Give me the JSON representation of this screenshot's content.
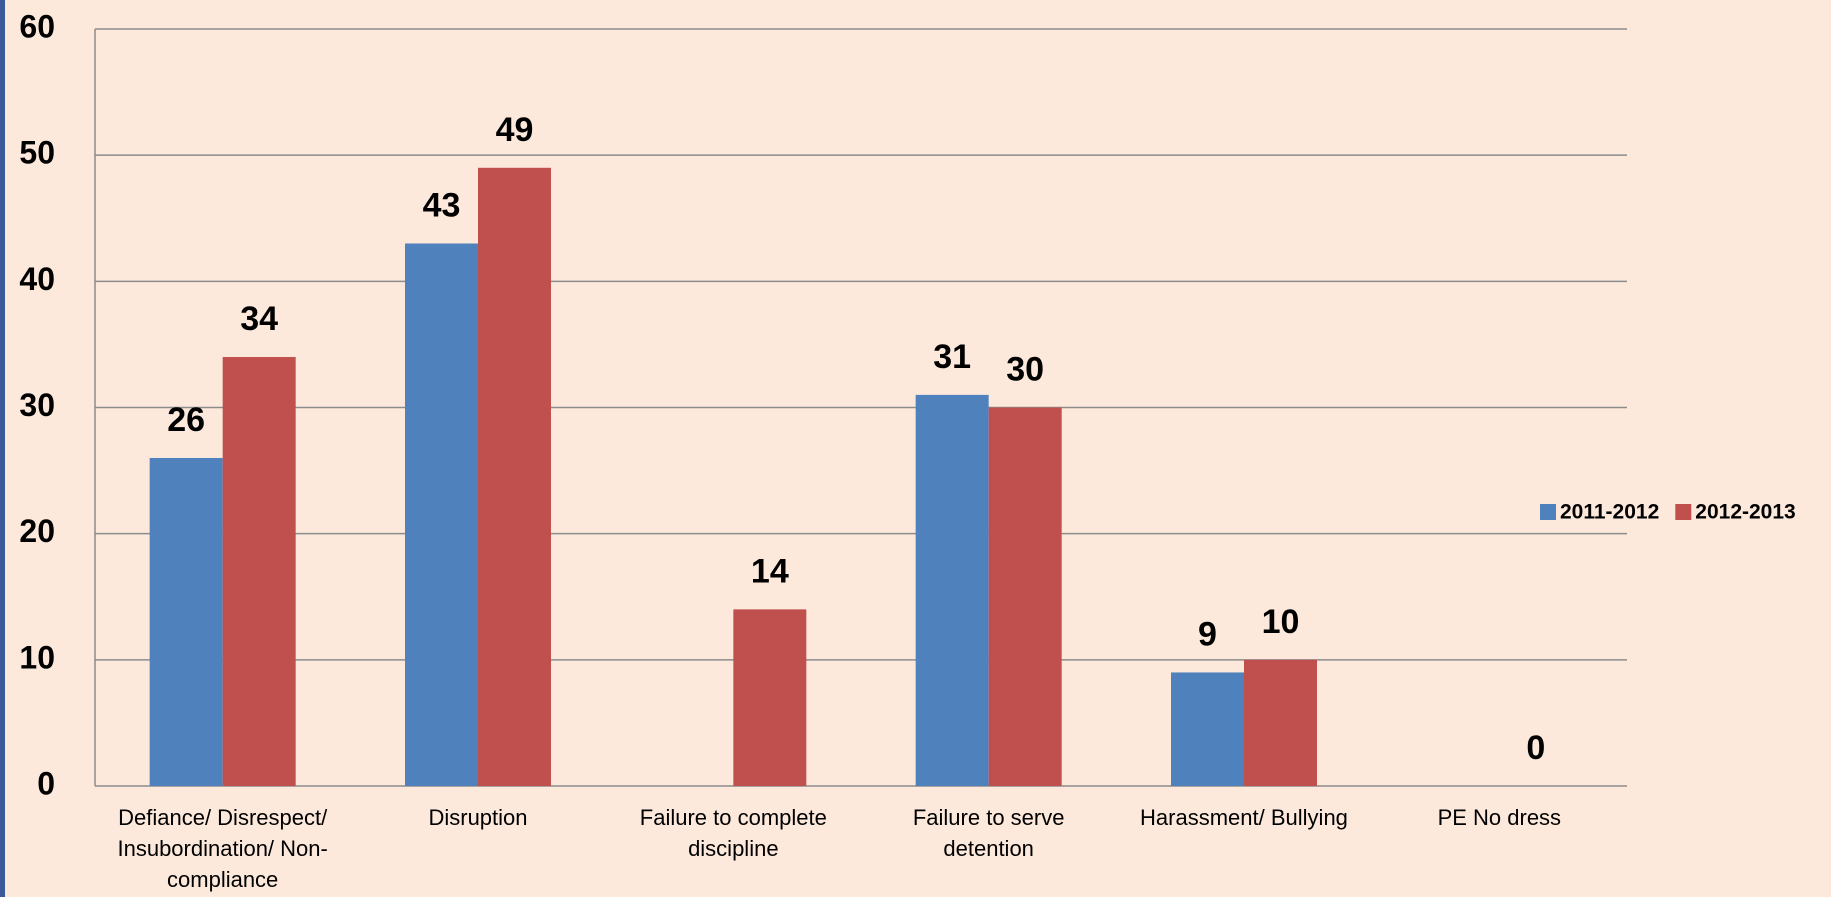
{
  "chart_data": {
    "type": "bar",
    "categories": [
      "Defiance/ Disrespect/ Insubordination/ Non-compliance",
      "Disruption",
      "Failure to complete discipline",
      "Failure to serve detention",
      "Harassment/ Bullying",
      "PE No dress"
    ],
    "series": [
      {
        "name": "2011-2012",
        "color": "#4f81bd",
        "values": [
          26,
          43,
          null,
          31,
          9,
          null
        ]
      },
      {
        "name": "2012-2013",
        "color": "#c0504d",
        "values": [
          34,
          49,
          14,
          30,
          10,
          0
        ]
      }
    ],
    "ylim": [
      0,
      60
    ],
    "yticks": [
      0,
      10,
      20,
      30,
      40,
      50,
      60
    ],
    "grid": true,
    "legend": "right"
  }
}
